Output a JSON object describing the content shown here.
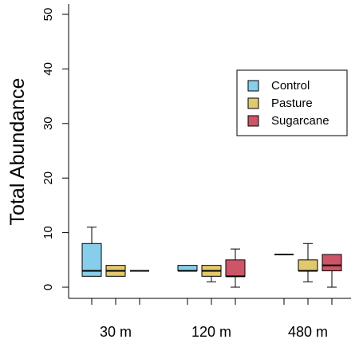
{
  "chart_data": {
    "type": "boxplot",
    "title": "",
    "xlabel": "",
    "ylabel": "Total Abundance",
    "ylim": [
      0,
      50
    ],
    "yticks": [
      "0",
      "10",
      "20",
      "30",
      "40",
      "50"
    ],
    "yticks_values": [
      0,
      10,
      20,
      30,
      40,
      50
    ],
    "categories": [
      "30 m",
      "120 m",
      "480 m"
    ],
    "legend_position": "top-right",
    "series": [
      {
        "name": "Control",
        "color": "#87CEEB",
        "boxes": [
          {
            "min": 2,
            "q1": 2,
            "median": 3,
            "q3": 8,
            "max": 11
          },
          {
            "min": 3,
            "q1": 3,
            "median": 3,
            "q3": 4,
            "max": 4
          },
          {
            "min": 6,
            "q1": 6,
            "median": 6,
            "q3": 6,
            "max": 6
          }
        ]
      },
      {
        "name": "Pasture",
        "color": "#E1C96D",
        "boxes": [
          {
            "min": 2,
            "q1": 2,
            "median": 3,
            "q3": 4,
            "max": 4
          },
          {
            "min": 1,
            "q1": 2,
            "median": 3,
            "q3": 4,
            "max": 4
          },
          {
            "min": 1,
            "q1": 3,
            "median": 3,
            "q3": 5,
            "max": 8
          }
        ]
      },
      {
        "name": "Sugarcane",
        "color": "#CC5567",
        "boxes": [
          {
            "min": 3,
            "q1": 3,
            "median": 3,
            "q3": 3,
            "max": 3
          },
          {
            "min": 0,
            "q1": 2,
            "median": 2,
            "q3": 5,
            "max": 7
          },
          {
            "min": 0,
            "q1": 3,
            "median": 4,
            "q3": 6,
            "max": 6
          }
        ]
      }
    ]
  }
}
